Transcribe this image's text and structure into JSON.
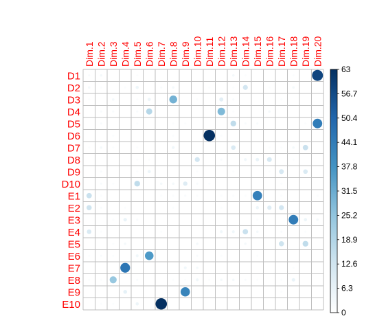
{
  "chart_data": {
    "type": "heatmap",
    "subtype": "circle-correlation-plot",
    "title": "",
    "columns": [
      "Dim.1",
      "Dim.2",
      "Dim.3",
      "Dim.4",
      "Dim.5",
      "Dim.6",
      "Dim.7",
      "Dim.8",
      "Dim.9",
      "Dim.10",
      "Dim.11",
      "Dim.12",
      "Dim.13",
      "Dim.14",
      "Dim.15",
      "Dim.16",
      "Dim.17",
      "Dim.18",
      "Dim.19",
      "Dim.20"
    ],
    "rows": [
      "D1",
      "D2",
      "D3",
      "D4",
      "D5",
      "D6",
      "D7",
      "D8",
      "D9",
      "D10",
      "E1",
      "E2",
      "E3",
      "E4",
      "E5",
      "E6",
      "E7",
      "E8",
      "E9",
      "E10"
    ],
    "values": [
      [
        2,
        3,
        0,
        0,
        1,
        0,
        0,
        0,
        0,
        0,
        0,
        0,
        3,
        1,
        0,
        0,
        0,
        1,
        0,
        58
      ],
      [
        3,
        1,
        0,
        1,
        5,
        0,
        2,
        3,
        0,
        0,
        1,
        0,
        1,
        12,
        0,
        1,
        0,
        3,
        0,
        0
      ],
      [
        1,
        0,
        3,
        0,
        1,
        5,
        0,
        30,
        0,
        1,
        0,
        8,
        2,
        0,
        0,
        0,
        1,
        0,
        0,
        0
      ],
      [
        0,
        2,
        2,
        0,
        2,
        18,
        0,
        0,
        0,
        0,
        0,
        28,
        1,
        0,
        0,
        3,
        0,
        0,
        0,
        0
      ],
      [
        0,
        2,
        0,
        0,
        1,
        0,
        0,
        1,
        1,
        0,
        0,
        0,
        16,
        2,
        2,
        0,
        0,
        0,
        1,
        44
      ],
      [
        0,
        0,
        1,
        0,
        0,
        0,
        0,
        1,
        0,
        0,
        63,
        1,
        0,
        0,
        0,
        0,
        0,
        0,
        0,
        0
      ],
      [
        1,
        3,
        1,
        0,
        1,
        0,
        0,
        4,
        0,
        0,
        0,
        0,
        10,
        0,
        0,
        1,
        1,
        3,
        14,
        0
      ],
      [
        0,
        0,
        0,
        0,
        1,
        1,
        0,
        0,
        0,
        12,
        0,
        2,
        0,
        4,
        6,
        11,
        0,
        1,
        0,
        0
      ],
      [
        0,
        2,
        0,
        0,
        1,
        5,
        0,
        0,
        0,
        1,
        0,
        0,
        1,
        0,
        0,
        1,
        11,
        0,
        10,
        0
      ],
      [
        0,
        2,
        1,
        0,
        16,
        0,
        3,
        3,
        9,
        2,
        1,
        0,
        0,
        0,
        0,
        0,
        1,
        0,
        0,
        0
      ],
      [
        14,
        1,
        0,
        0,
        0,
        0,
        1,
        1,
        2,
        1,
        0,
        1,
        1,
        1,
        43,
        0,
        1,
        0,
        0,
        1
      ],
      [
        13,
        2,
        0,
        1,
        0,
        0,
        0,
        1,
        0,
        0,
        0,
        1,
        0,
        0,
        5,
        9,
        12,
        0,
        0,
        0
      ],
      [
        0,
        0,
        1,
        6,
        2,
        0,
        0,
        0,
        0,
        0,
        0,
        0,
        0,
        0,
        1,
        0,
        0,
        44,
        5,
        3
      ],
      [
        10,
        1,
        0,
        0,
        0,
        0,
        1,
        0,
        0,
        0,
        0,
        4,
        4,
        14,
        3,
        0,
        2,
        0,
        1,
        0
      ],
      [
        0,
        0,
        1,
        3,
        0,
        0,
        0,
        0,
        0,
        3,
        0,
        0,
        0,
        3,
        0,
        0,
        13,
        0,
        16,
        0
      ],
      [
        1,
        2,
        1,
        0,
        4,
        36,
        0,
        0,
        0,
        2,
        0,
        1,
        0,
        0,
        1,
        0,
        0,
        0,
        0,
        0
      ],
      [
        0,
        0,
        0,
        46,
        0,
        0,
        0,
        0,
        4,
        3,
        0,
        0,
        0,
        0,
        0,
        0,
        0,
        1,
        0,
        0
      ],
      [
        1,
        1,
        24,
        0,
        2,
        0,
        0,
        1,
        1,
        4,
        1,
        3,
        3,
        2,
        1,
        0,
        1,
        6,
        0,
        0
      ],
      [
        0,
        0,
        0,
        7,
        0,
        0,
        0,
        0,
        42,
        0,
        0,
        0,
        0,
        0,
        0,
        0,
        1,
        0,
        0,
        0
      ],
      [
        0,
        1,
        1,
        0,
        5,
        0,
        63,
        0,
        0,
        0,
        0,
        0,
        0,
        0,
        0,
        0,
        0,
        0,
        0,
        0
      ]
    ],
    "scale": {
      "min": 0,
      "max": 63,
      "ticks": [
        "0",
        "6.3",
        "12.6",
        "18.9",
        "25.2",
        "31.5",
        "37.8",
        "44.1",
        "50.4",
        "56.7",
        "63"
      ],
      "colors": [
        "#ffffff",
        "#d1e5f0",
        "#92c5de",
        "#4393c3",
        "#2166ac",
        "#053061"
      ]
    },
    "label_color": "#ff0000",
    "grid_color": "#bebebe"
  }
}
